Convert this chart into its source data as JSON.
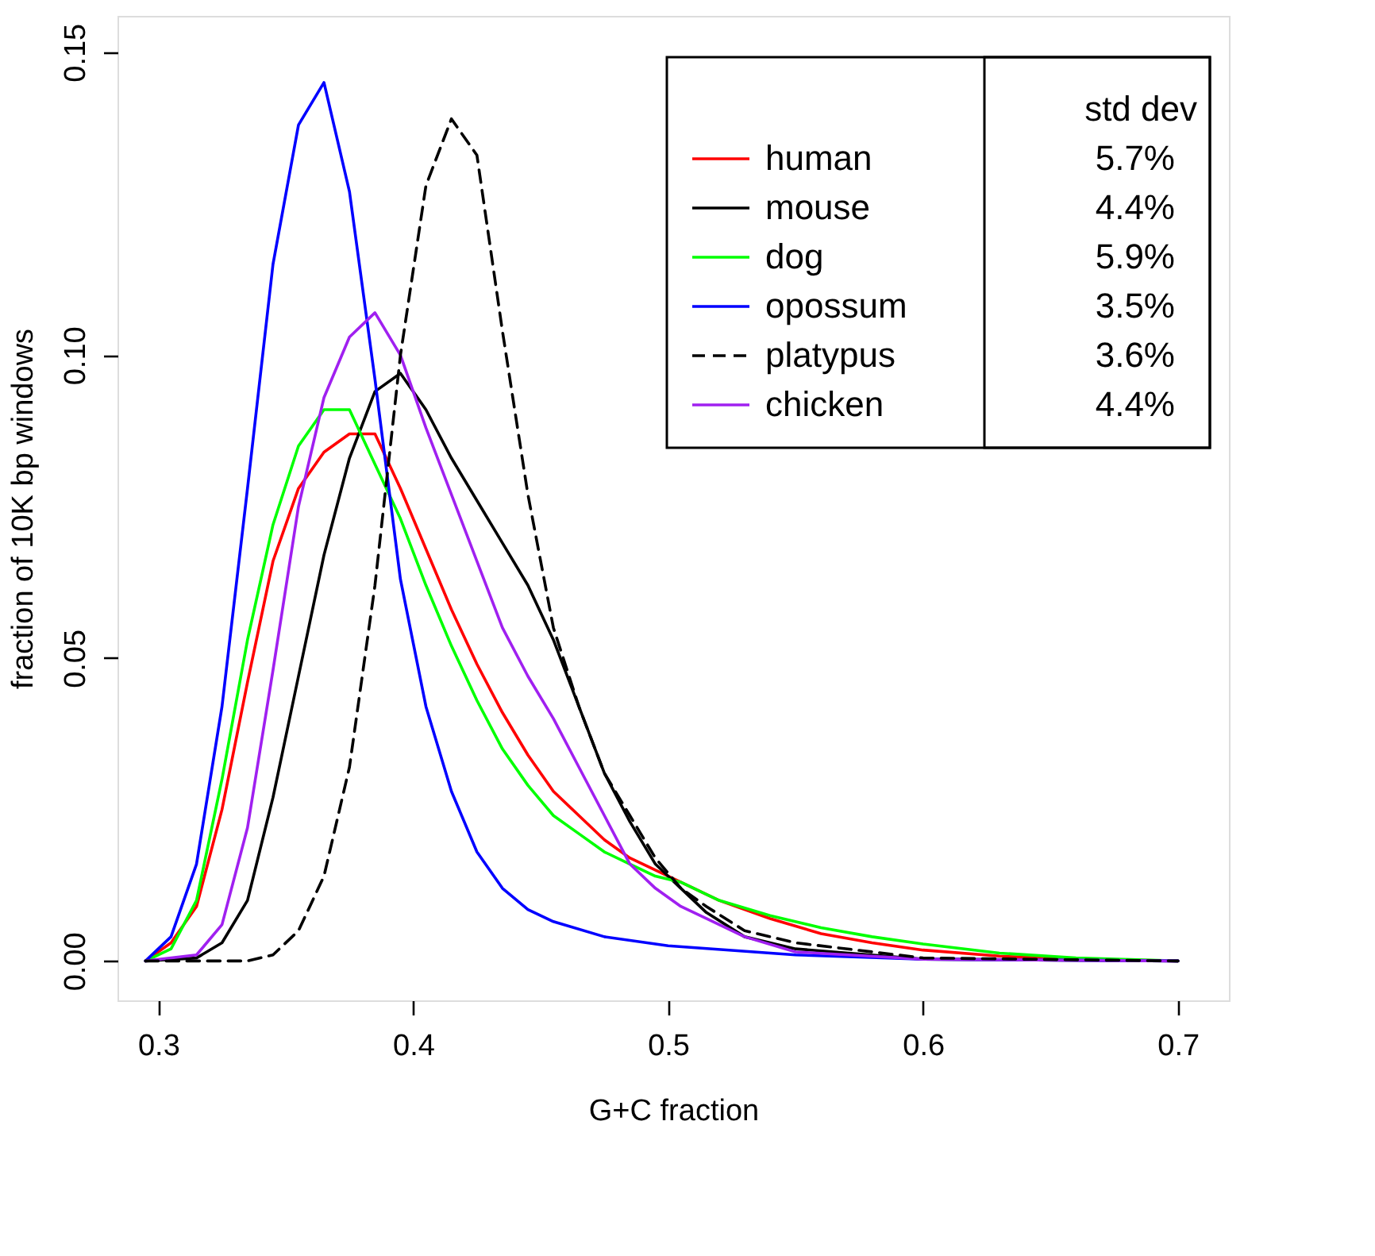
{
  "chart_data": {
    "type": "line",
    "xlabel": "G+C fraction",
    "ylabel": "fraction of 10K bp windows",
    "xlim": [
      0.284,
      0.72
    ],
    "ylim": [
      -0.0065,
      0.156
    ],
    "xticks": [
      0.3,
      0.4,
      0.5,
      0.6,
      0.7
    ],
    "yticks": [
      {
        "value": 0,
        "label": "0.00"
      },
      {
        "value": 0.05,
        "label": "0.05"
      },
      {
        "value": 0.1,
        "label": "0.10"
      },
      {
        "value": 0.15,
        "label": "0.15"
      }
    ],
    "grid": false,
    "legend": "top right",
    "line_style": "solid",
    "marker": "none",
    "annotations": [
      "std dev",
      "5.7%",
      "4.4%",
      "5.9%",
      "3.5%",
      "3.6%",
      "4.4%"
    ],
    "series": [
      {
        "name": "human",
        "color": "#ff0000",
        "x": [
          0.295,
          0.305,
          0.315,
          0.325,
          0.335,
          0.345,
          0.355,
          0.365,
          0.375,
          0.385,
          0.395,
          0.405,
          0.415,
          0.425,
          0.435,
          0.445,
          0.455,
          0.465,
          0.475,
          0.485,
          0.495,
          0.505,
          0.52,
          0.54,
          0.56,
          0.58,
          0.6,
          0.63,
          0.66,
          0.7
        ],
        "values": [
          0,
          0.003,
          0.009,
          0.025,
          0.046,
          0.066,
          0.078,
          0.084,
          0.087,
          0.087,
          0.078,
          0.068,
          0.058,
          0.049,
          0.041,
          0.034,
          0.028,
          0.024,
          0.02,
          0.017,
          0.015,
          0.013,
          0.01,
          0.007,
          0.0045,
          0.003,
          0.0018,
          0.0008,
          0.0003,
          0
        ]
      },
      {
        "name": "mouse",
        "color": "#000000",
        "x": [
          0.295,
          0.315,
          0.325,
          0.335,
          0.345,
          0.355,
          0.365,
          0.375,
          0.385,
          0.395,
          0.405,
          0.415,
          0.425,
          0.435,
          0.445,
          0.455,
          0.465,
          0.475,
          0.485,
          0.495,
          0.505,
          0.515,
          0.53,
          0.55,
          0.6,
          0.7
        ],
        "values": [
          0,
          0.0005,
          0.003,
          0.01,
          0.027,
          0.047,
          0.067,
          0.083,
          0.094,
          0.097,
          0.091,
          0.083,
          0.076,
          0.069,
          0.062,
          0.053,
          0.042,
          0.031,
          0.023,
          0.016,
          0.012,
          0.008,
          0.004,
          0.002,
          0.0003,
          0
        ]
      },
      {
        "name": "dog",
        "color": "#00ff00",
        "x": [
          0.295,
          0.305,
          0.315,
          0.325,
          0.335,
          0.345,
          0.355,
          0.365,
          0.375,
          0.385,
          0.395,
          0.405,
          0.415,
          0.425,
          0.435,
          0.445,
          0.455,
          0.465,
          0.475,
          0.485,
          0.495,
          0.505,
          0.52,
          0.54,
          0.56,
          0.58,
          0.6,
          0.63,
          0.66,
          0.7
        ],
        "values": [
          0,
          0.002,
          0.01,
          0.03,
          0.053,
          0.072,
          0.085,
          0.091,
          0.091,
          0.082,
          0.073,
          0.062,
          0.052,
          0.043,
          0.035,
          0.029,
          0.024,
          0.021,
          0.018,
          0.016,
          0.014,
          0.013,
          0.01,
          0.0075,
          0.0055,
          0.004,
          0.0028,
          0.0013,
          0.0005,
          0
        ]
      },
      {
        "name": "opossum",
        "color": "#0000ff",
        "x": [
          0.295,
          0.305,
          0.315,
          0.325,
          0.335,
          0.345,
          0.355,
          0.365,
          0.375,
          0.385,
          0.395,
          0.405,
          0.415,
          0.425,
          0.435,
          0.445,
          0.455,
          0.475,
          0.5,
          0.55,
          0.6,
          0.7
        ],
        "values": [
          0,
          0.004,
          0.016,
          0.042,
          0.078,
          0.115,
          0.138,
          0.145,
          0.127,
          0.096,
          0.063,
          0.042,
          0.028,
          0.018,
          0.012,
          0.0085,
          0.0065,
          0.004,
          0.0025,
          0.001,
          0.0003,
          0
        ]
      },
      {
        "name": "platypus",
        "color": "#000000",
        "line_style": "dashed",
        "x": [
          0.295,
          0.335,
          0.345,
          0.355,
          0.365,
          0.375,
          0.385,
          0.395,
          0.405,
          0.415,
          0.425,
          0.435,
          0.445,
          0.455,
          0.465,
          0.475,
          0.485,
          0.495,
          0.505,
          0.515,
          0.53,
          0.55,
          0.6,
          0.7
        ],
        "values": [
          0,
          0,
          0.001,
          0.005,
          0.014,
          0.032,
          0.062,
          0.1,
          0.128,
          0.139,
          0.133,
          0.104,
          0.077,
          0.055,
          0.042,
          0.031,
          0.024,
          0.017,
          0.012,
          0.009,
          0.005,
          0.003,
          0.0005,
          0
        ]
      },
      {
        "name": "chicken",
        "color": "#a020f0",
        "x": [
          0.295,
          0.315,
          0.325,
          0.335,
          0.345,
          0.355,
          0.365,
          0.375,
          0.385,
          0.395,
          0.405,
          0.415,
          0.425,
          0.435,
          0.445,
          0.455,
          0.465,
          0.475,
          0.485,
          0.495,
          0.505,
          0.515,
          0.53,
          0.55,
          0.6,
          0.7
        ],
        "values": [
          0,
          0.001,
          0.006,
          0.022,
          0.048,
          0.075,
          0.093,
          0.103,
          0.107,
          0.1,
          0.088,
          0.077,
          0.066,
          0.055,
          0.047,
          0.04,
          0.032,
          0.024,
          0.016,
          0.012,
          0.009,
          0.007,
          0.004,
          0.0015,
          0.0003,
          0
        ]
      }
    ]
  }
}
